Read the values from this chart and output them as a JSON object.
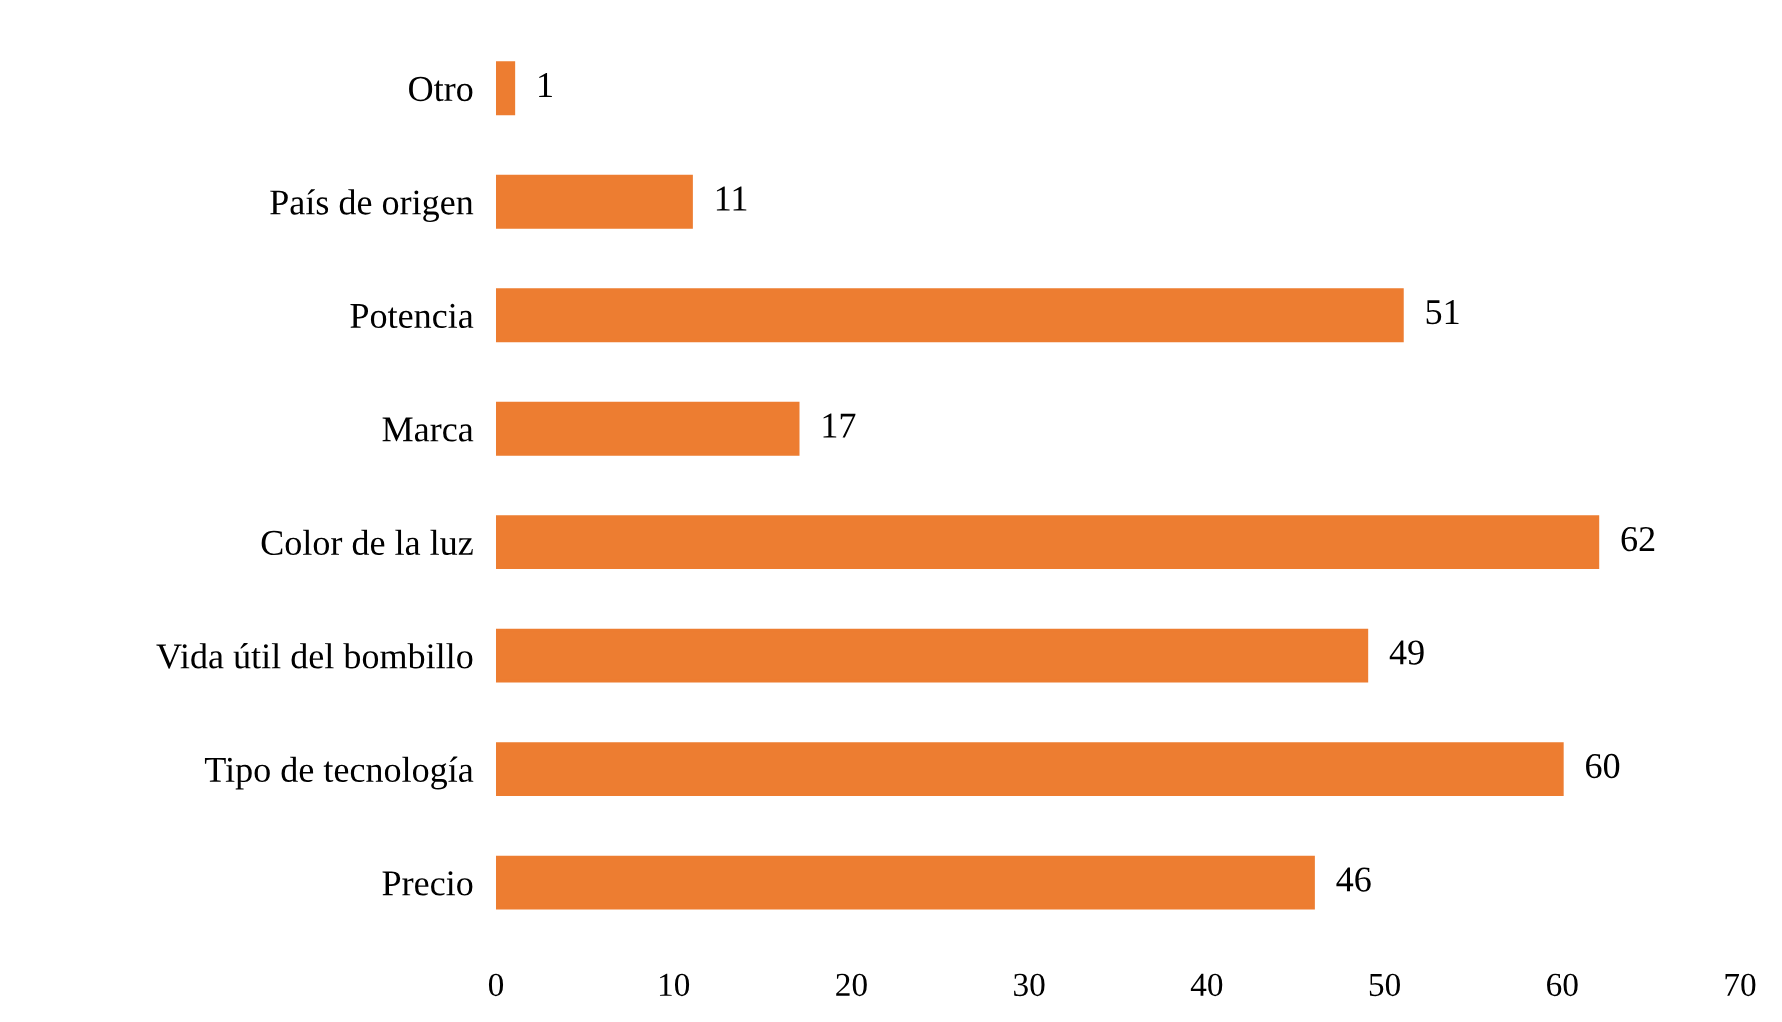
{
  "chart_data": {
    "type": "bar",
    "orientation": "horizontal",
    "categories": [
      "Otro",
      "País de origen",
      "Potencia",
      "Marca",
      "Color de la luz",
      "Vida útil del bombillo",
      "Tipo de tecnología",
      "Precio"
    ],
    "values": [
      1,
      11,
      51,
      17,
      62,
      49,
      60,
      46
    ],
    "color": "#ed7d31",
    "xlim": [
      0,
      70
    ],
    "xticks": [
      0,
      10,
      20,
      30,
      40,
      50,
      60,
      70
    ],
    "data_labels": true,
    "grid": false,
    "legend": false
  }
}
